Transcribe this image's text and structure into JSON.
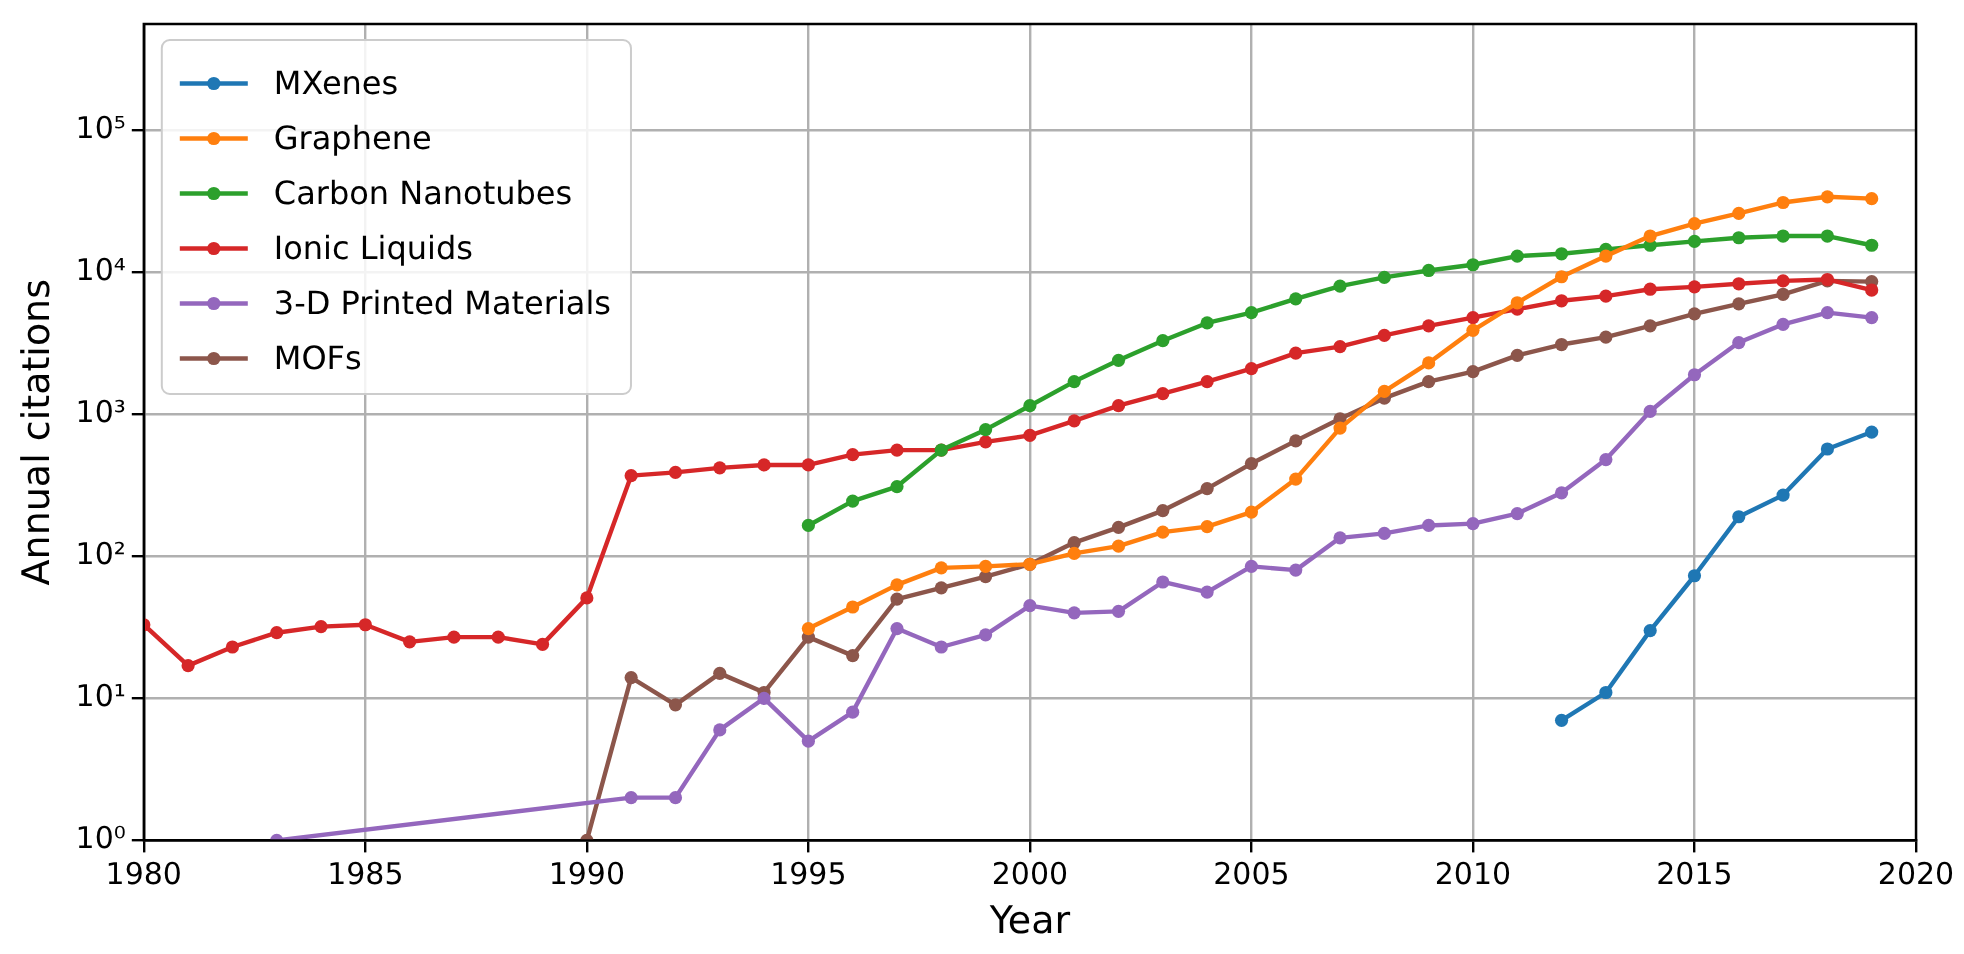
{
  "chart_data": {
    "type": "line",
    "xlabel": "Year",
    "ylabel": "Annual citations",
    "xlim": [
      1980,
      2020
    ],
    "xticks": [
      1980,
      1985,
      1990,
      1995,
      2000,
      2005,
      2010,
      2015,
      2020
    ],
    "ylim": [
      1,
      560000
    ],
    "yticks": [
      {
        "value": 1,
        "label": "10⁰"
      },
      {
        "value": 10,
        "label": "10¹"
      },
      {
        "value": 100,
        "label": "10²"
      },
      {
        "value": 1000,
        "label": "10³"
      },
      {
        "value": 10000,
        "label": "10⁴"
      },
      {
        "value": 100000,
        "label": "10⁵"
      }
    ],
    "log": "y",
    "grid": true,
    "legend": "top left",
    "marker": "circle",
    "line_style": "solid",
    "series": [
      {
        "name": "MXenes",
        "color": "#1f77b4",
        "x": [
          2012,
          2013,
          2014,
          2015,
          2016,
          2017,
          2018,
          2019
        ],
        "values": [
          7,
          11,
          30,
          73,
          190,
          270,
          570,
          750
        ]
      },
      {
        "name": "Graphene",
        "color": "#ff7f0e",
        "x": [
          1995,
          1996,
          1997,
          1998,
          1999,
          2000,
          2001,
          2002,
          2003,
          2004,
          2005,
          2006,
          2007,
          2008,
          2009,
          2010,
          2011,
          2012,
          2013,
          2014,
          2015,
          2016,
          2017,
          2018,
          2019
        ],
        "values": [
          31,
          44,
          63,
          83,
          85,
          88,
          105,
          118,
          148,
          162,
          205,
          350,
          800,
          1450,
          2300,
          3900,
          6100,
          9300,
          13000,
          18000,
          22000,
          26000,
          31000,
          34000,
          33000
        ]
      },
      {
        "name": "Carbon Nanotubes",
        "color": "#2ca02c",
        "x": [
          1995,
          1996,
          1997,
          1998,
          1999,
          2000,
          2001,
          2002,
          2003,
          2004,
          2005,
          2006,
          2007,
          2008,
          2009,
          2010,
          2011,
          2012,
          2013,
          2014,
          2015,
          2016,
          2017,
          2018,
          2019
        ],
        "values": [
          165,
          245,
          310,
          560,
          780,
          1150,
          1700,
          2400,
          3300,
          4400,
          5200,
          6500,
          8000,
          9200,
          10300,
          11300,
          13000,
          13500,
          14500,
          15500,
          16500,
          17500,
          18000,
          18000,
          15500
        ]
      },
      {
        "name": "Ionic Liquids",
        "color": "#d62728",
        "x": [
          1980,
          1981,
          1982,
          1983,
          1984,
          1985,
          1986,
          1987,
          1988,
          1989,
          1990,
          1991,
          1992,
          1993,
          1994,
          1995,
          1996,
          1997,
          1998,
          1999,
          2000,
          2001,
          2002,
          2003,
          2004,
          2005,
          2006,
          2007,
          2008,
          2009,
          2010,
          2011,
          2012,
          2013,
          2014,
          2015,
          2016,
          2017,
          2018,
          2019
        ],
        "values": [
          33,
          17,
          23,
          29,
          32,
          33,
          25,
          27,
          27,
          24,
          51,
          370,
          390,
          420,
          440,
          440,
          520,
          560,
          560,
          640,
          710,
          900,
          1150,
          1400,
          1700,
          2100,
          2700,
          3000,
          3600,
          4200,
          4800,
          5500,
          6300,
          6800,
          7600,
          7900,
          8300,
          8700,
          8900,
          7500
        ]
      },
      {
        "name": "3-D Printed Materials",
        "color": "#9467bd",
        "x": [
          1983,
          1991,
          1992,
          1993,
          1994,
          1995,
          1996,
          1997,
          1998,
          1999,
          2000,
          2001,
          2002,
          2003,
          2004,
          2005,
          2006,
          2007,
          2008,
          2009,
          2010,
          2011,
          2012,
          2013,
          2014,
          2015,
          2016,
          2017,
          2018,
          2019
        ],
        "values": [
          1,
          2,
          2,
          6,
          10,
          5,
          8,
          31,
          23,
          28,
          45,
          40,
          41,
          66,
          56,
          85,
          80,
          135,
          145,
          165,
          170,
          200,
          280,
          480,
          1050,
          1900,
          3200,
          4300,
          5200,
          4800
        ]
      },
      {
        "name": "MOFs",
        "color": "#8c564b",
        "x": [
          1990,
          1991,
          1992,
          1993,
          1994,
          1995,
          1996,
          1997,
          1998,
          1999,
          2000,
          2001,
          2002,
          2003,
          2004,
          2005,
          2006,
          2007,
          2008,
          2009,
          2010,
          2011,
          2012,
          2013,
          2014,
          2015,
          2016,
          2017,
          2018,
          2019
        ],
        "values": [
          1,
          14,
          9,
          15,
          11,
          27,
          20,
          50,
          60,
          72,
          88,
          125,
          160,
          210,
          300,
          450,
          650,
          930,
          1300,
          1700,
          2000,
          2600,
          3100,
          3500,
          4200,
          5100,
          6000,
          7000,
          8700,
          8600
        ]
      }
    ]
  }
}
